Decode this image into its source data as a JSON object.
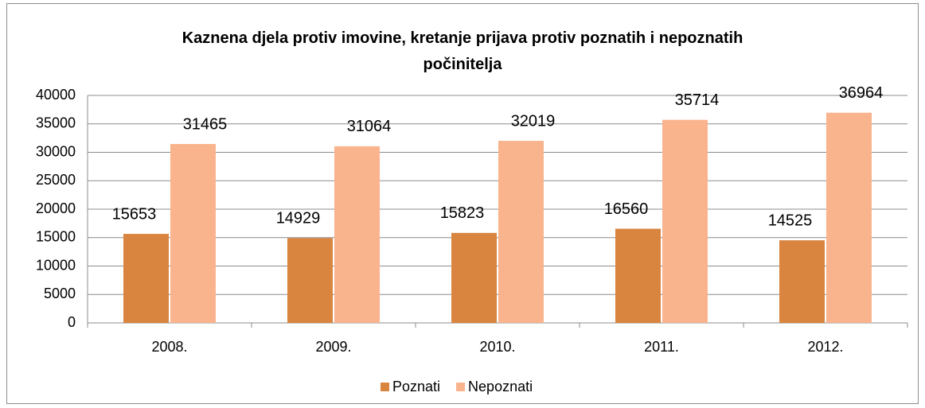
{
  "chart_data": {
    "type": "bar",
    "title": "Kaznena djela protiv imovine, kretanje prijava protiv poznatih i nepoznatih počinitelja",
    "categories": [
      "2008.",
      "2009.",
      "2010.",
      "2011.",
      "2012."
    ],
    "series": [
      {
        "name": "Poznati",
        "color": "#d9843f",
        "values": [
          15653,
          14929,
          15823,
          16560,
          14525
        ]
      },
      {
        "name": "Nepoznati",
        "color": "#f9b48e",
        "values": [
          31465,
          31064,
          32019,
          35714,
          36964
        ]
      }
    ],
    "ylim": [
      0,
      40000
    ],
    "yticks": [
      0,
      5000,
      10000,
      15000,
      20000,
      25000,
      30000,
      35000,
      40000
    ],
    "grid": true,
    "legend": "bottom"
  }
}
